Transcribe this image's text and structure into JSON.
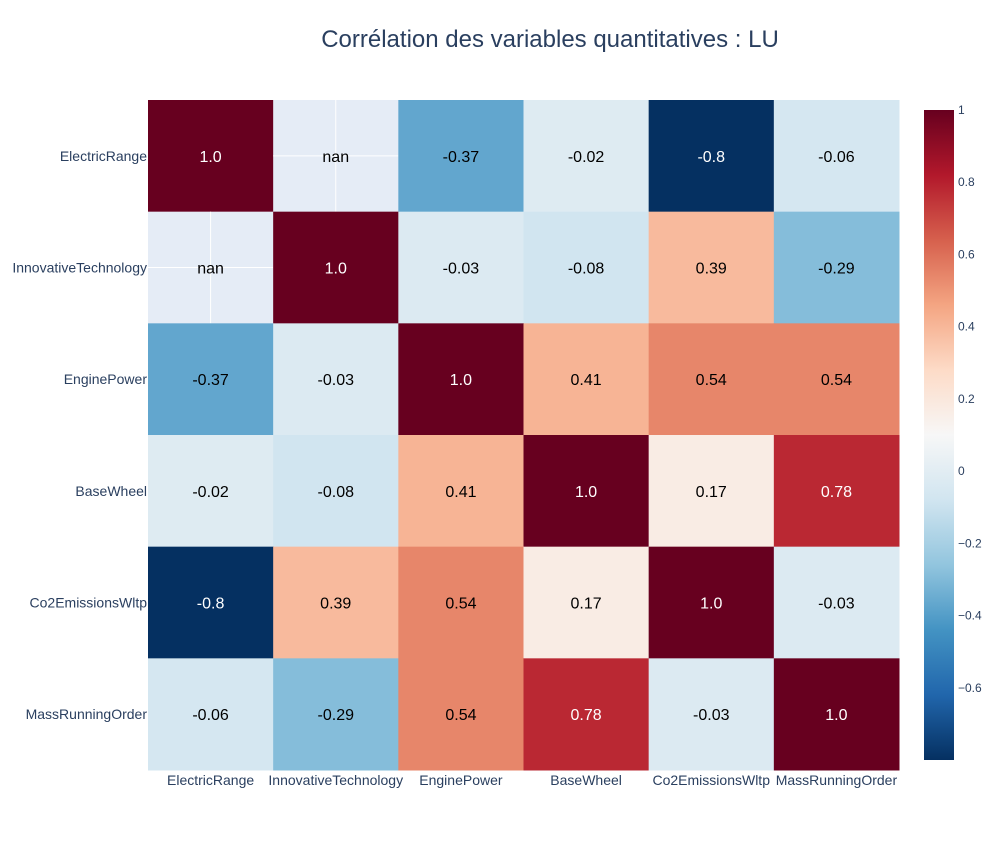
{
  "chart_data": {
    "type": "heatmap",
    "title": "Corrélation des variables quantitatives : LU",
    "x": [
      "ElectricRange",
      "InnovativeTechnology",
      "EnginePower",
      "BaseWheel",
      "Co2EmissionsWltp",
      "MassRunningOrder"
    ],
    "y": [
      "ElectricRange",
      "InnovativeTechnology",
      "EnginePower",
      "BaseWheel",
      "Co2EmissionsWltp",
      "MassRunningOrder"
    ],
    "z": [
      [
        1.0,
        null,
        -0.37,
        -0.02,
        -0.8,
        -0.06
      ],
      [
        null,
        1.0,
        -0.03,
        -0.08,
        0.39,
        -0.29
      ],
      [
        -0.37,
        -0.03,
        1.0,
        0.41,
        0.54,
        0.54
      ],
      [
        -0.02,
        -0.08,
        0.41,
        1.0,
        0.17,
        0.78
      ],
      [
        -0.8,
        0.39,
        0.54,
        0.17,
        1.0,
        -0.03
      ],
      [
        -0.06,
        -0.29,
        0.54,
        0.78,
        -0.03,
        1.0
      ]
    ],
    "text": [
      [
        "1.0",
        "nan",
        "-0.37",
        "-0.02",
        "-0.8",
        "-0.06"
      ],
      [
        "nan",
        "1.0",
        "-0.03",
        "-0.08",
        "0.39",
        "-0.29"
      ],
      [
        "-0.37",
        "-0.03",
        "1.0",
        "0.41",
        "0.54",
        "0.54"
      ],
      [
        "-0.02",
        "-0.08",
        "0.41",
        "1.0",
        "0.17",
        "0.78"
      ],
      [
        "-0.8",
        "0.39",
        "0.54",
        "0.17",
        "1.0",
        "-0.03"
      ],
      [
        "-0.06",
        "-0.29",
        "0.54",
        "0.78",
        "-0.03",
        "1.0"
      ]
    ],
    "colorscale": "RdBu reversed",
    "zmin": -0.8,
    "zmax": 1.0,
    "colorbar": {
      "ticks": [
        1,
        0.8,
        0.6,
        0.4,
        0.2,
        0,
        -0.2,
        -0.4,
        -0.6
      ],
      "tick_labels": [
        "1",
        "0.8",
        "0.6",
        "0.4",
        "0.2",
        "0",
        "−0.2",
        "−0.4",
        "−0.6"
      ]
    },
    "colors": {
      "title": "#2a3f5f",
      "nan_cell": "#e5ecf6",
      "scale_stops": [
        "#053061",
        "#2166ac",
        "#4393c3",
        "#92c5de",
        "#d1e5f0",
        "#f7f7f7",
        "#fddbc7",
        "#f4a582",
        "#d6604d",
        "#b2182b",
        "#67001f"
      ]
    }
  }
}
